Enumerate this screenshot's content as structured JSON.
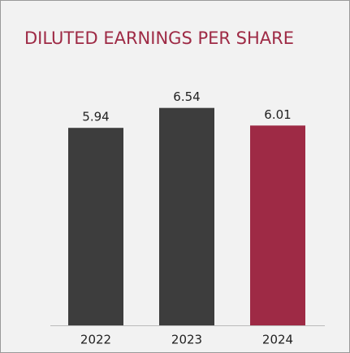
{
  "chart_data": {
    "type": "bar",
    "title": "DILUTED EARNINGS PER SHARE",
    "categories": [
      "2022",
      "2023",
      "2024"
    ],
    "values": [
      5.94,
      6.54,
      6.01
    ],
    "colors": [
      "#3d3d3d",
      "#3d3d3d",
      "#9e2a45"
    ],
    "ylim": [
      0,
      8
    ]
  }
}
